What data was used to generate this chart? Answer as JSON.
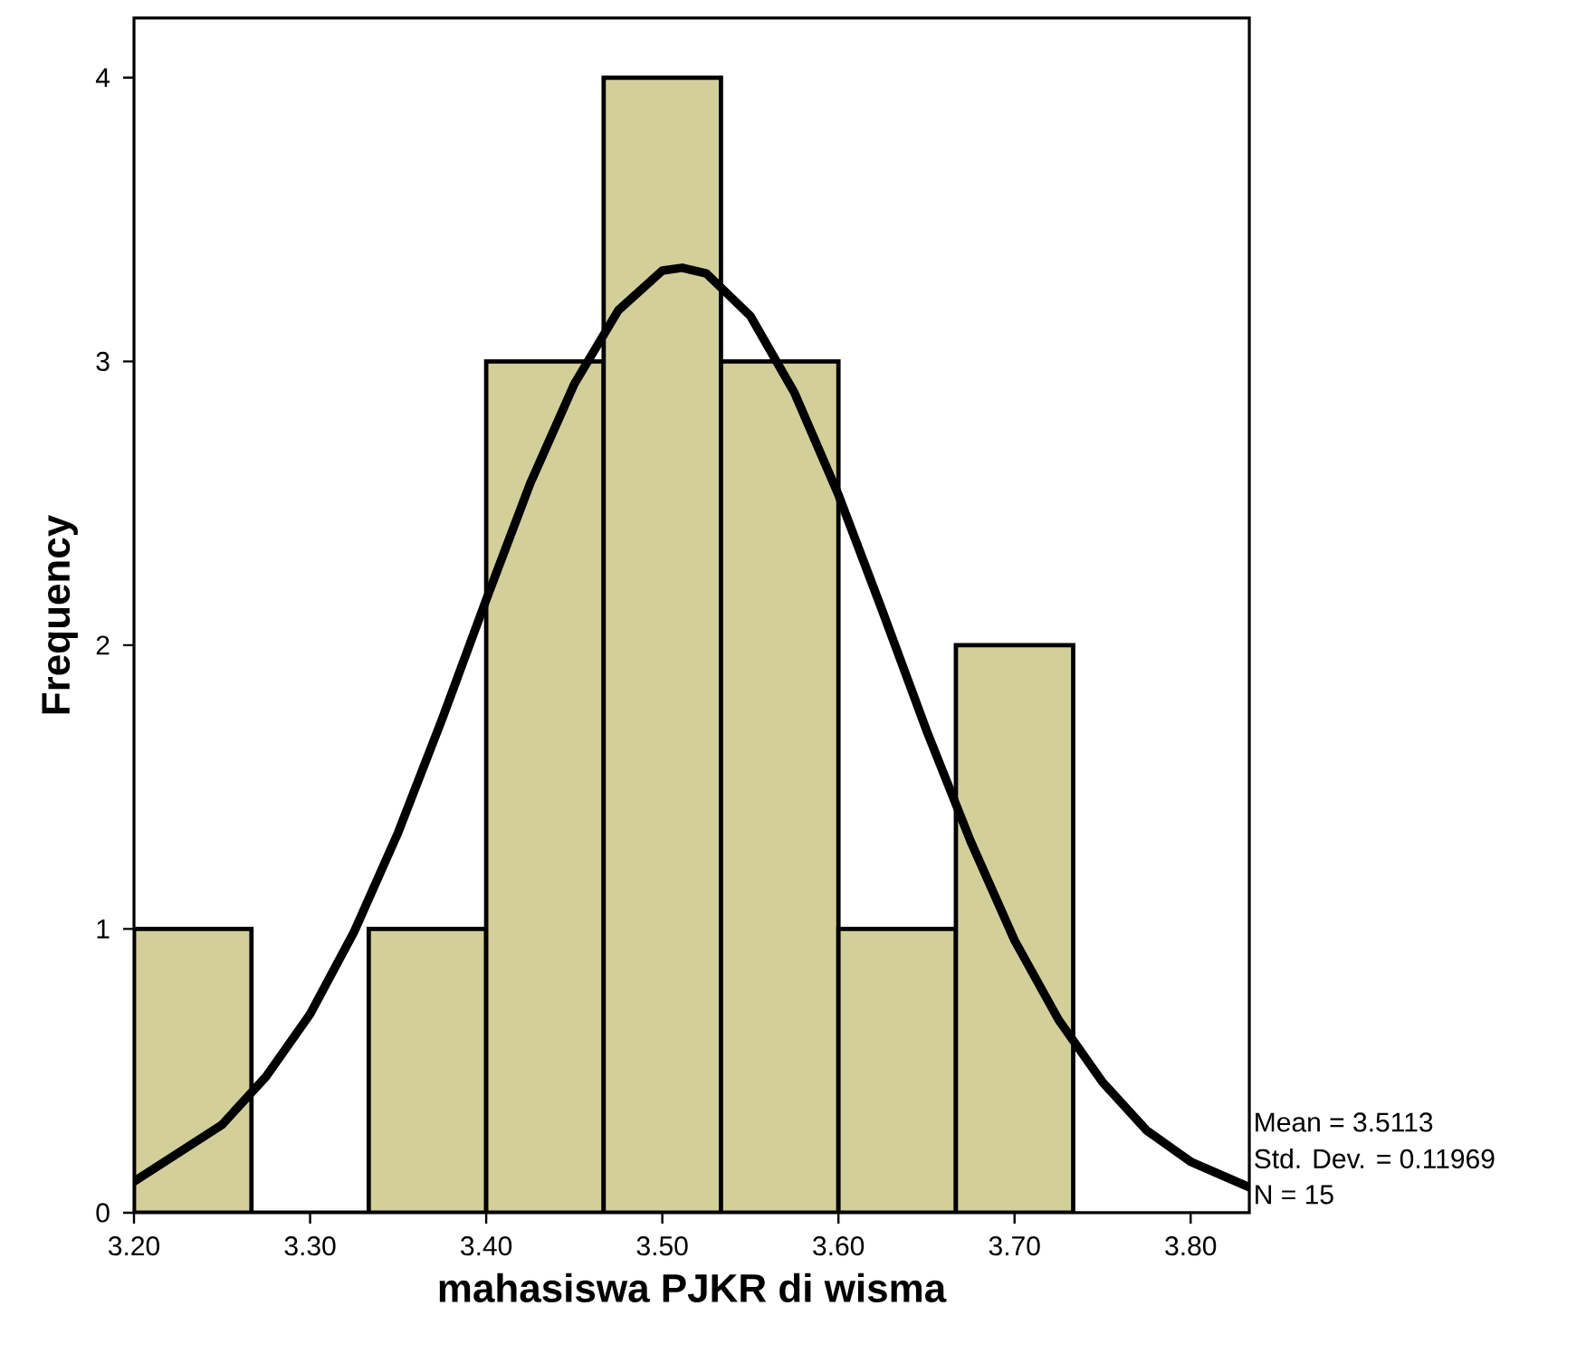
{
  "chart_data": {
    "type": "histogram",
    "xlabel": "mahasiswa PJKR di wisma",
    "ylabel": "Frequency",
    "bins": [
      3.2,
      3.2667,
      3.3333,
      3.4,
      3.4667,
      3.5333,
      3.6,
      3.6667,
      3.7333
    ],
    "series": [
      {
        "color": "#d3cf9b",
        "values": [
          1,
          0,
          1,
          3,
          4,
          3,
          1,
          2
        ]
      },
      {
        "type": "line",
        "color": "#000000",
        "x": [
          3.2,
          3.25,
          3.275,
          3.3,
          3.325,
          3.35,
          3.375,
          3.4,
          3.425,
          3.45,
          3.475,
          3.5,
          3.5113,
          3.525,
          3.55,
          3.575,
          3.6,
          3.625,
          3.65,
          3.675,
          3.7,
          3.725,
          3.75,
          3.775,
          3.8,
          3.8333
        ],
        "values": [
          0.11,
          0.31,
          0.48,
          0.7,
          0.99,
          1.34,
          1.74,
          2.16,
          2.57,
          2.92,
          3.18,
          3.32,
          3.33,
          3.31,
          3.16,
          2.89,
          2.53,
          2.12,
          1.7,
          1.31,
          0.96,
          0.68,
          0.46,
          0.29,
          0.18,
          0.09
        ]
      }
    ],
    "xlim": [
      3.2,
      3.8333
    ],
    "ylim": [
      0,
      4.21
    ],
    "xticks": [
      {
        "value": 3.2,
        "label": "3.20"
      },
      {
        "value": 3.3,
        "label": "3.30"
      },
      {
        "value": 3.4,
        "label": "3.40"
      },
      {
        "value": 3.5,
        "label": "3.50"
      },
      {
        "value": 3.6,
        "label": "3.60"
      },
      {
        "value": 3.7,
        "label": "3.70"
      },
      {
        "value": 3.8,
        "label": "3.80"
      }
    ],
    "yticks": [
      0,
      1,
      2,
      3,
      4
    ],
    "annotations": [
      "Mean = 3.5113",
      "Std. Dev. = 0.11969",
      "N = 15"
    ]
  }
}
